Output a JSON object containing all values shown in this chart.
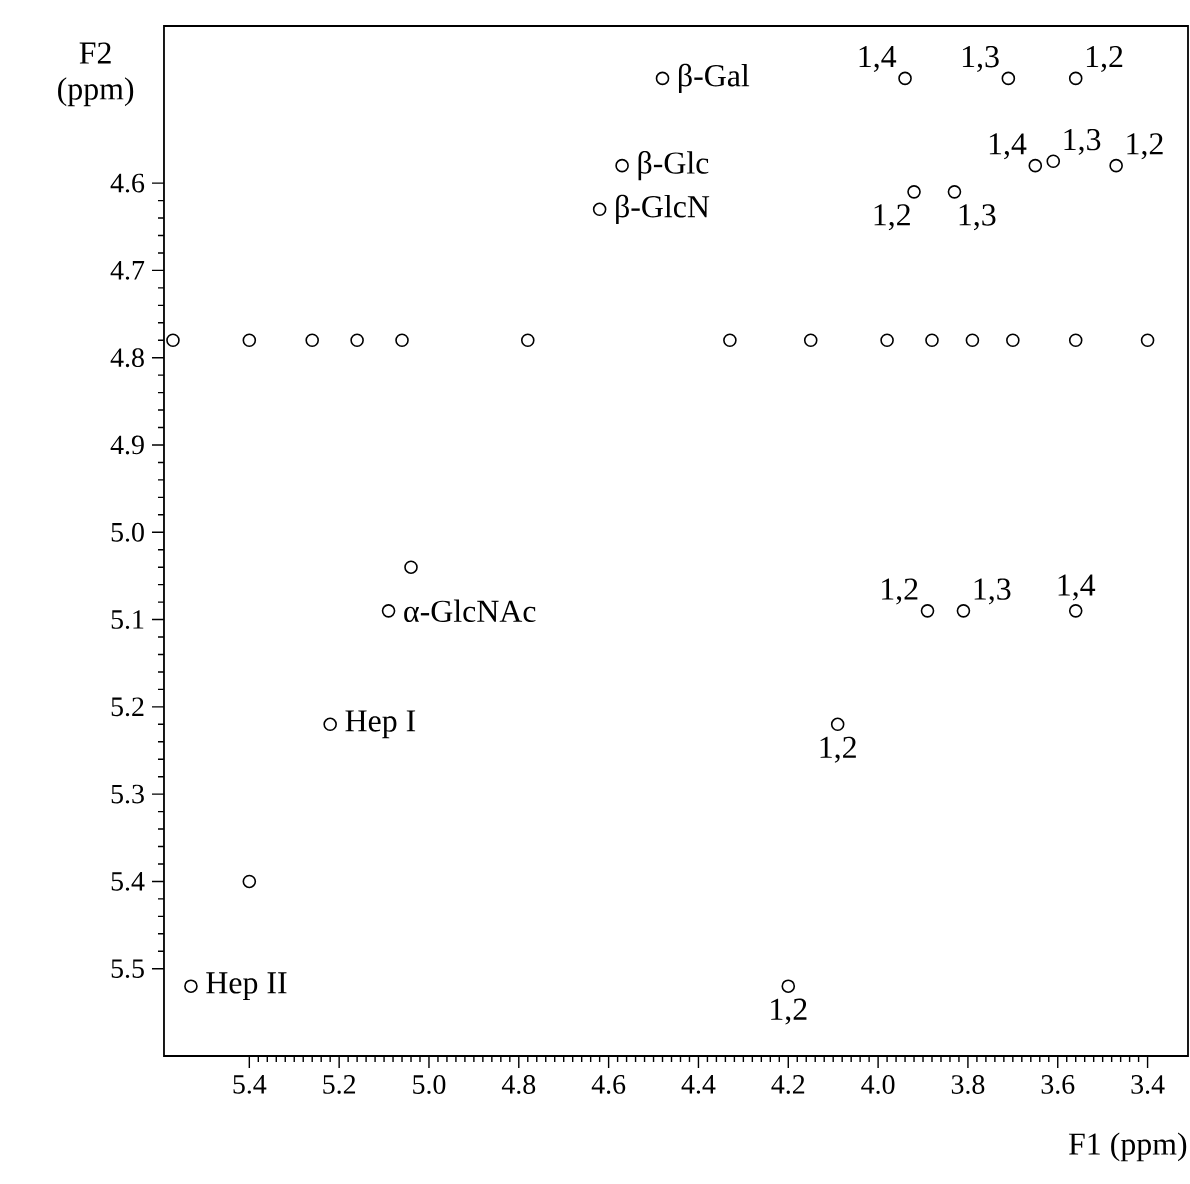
{
  "chart_data": {
    "type": "scatter",
    "xlabel": "F1 (ppm)",
    "ylabel": "F2 (ppm)",
    "marker": "circle",
    "xlim": [
      5.59,
      3.31
    ],
    "ylim": [
      5.6,
      4.42
    ],
    "xticks": [
      5.4,
      5.2,
      {
        "value": 5.0,
        "label": "5.0"
      },
      4.8,
      4.6,
      4.4,
      4.2,
      {
        "value": 4.0,
        "label": "4.0"
      },
      3.8,
      3.6,
      3.4
    ],
    "yticks": [
      4.6,
      4.7,
      4.8,
      4.9,
      {
        "value": 5.0,
        "label": "5.0"
      },
      5.1,
      5.2,
      5.3,
      5.4,
      5.5
    ],
    "series": [
      {
        "color": "#000000",
        "x": [
          4.48,
          4.57,
          4.62,
          4.78,
          5.04,
          5.09,
          5.22,
          5.4,
          5.53
        ],
        "values": [
          4.48,
          4.58,
          4.63,
          4.78,
          5.04,
          5.09,
          5.22,
          5.4,
          5.52
        ]
      },
      {
        "color": "#000000",
        "x": [
          3.94,
          3.71,
          3.56,
          3.65,
          3.61,
          3.47,
          3.92,
          3.83,
          3.89,
          3.81,
          3.56,
          4.09,
          4.2
        ],
        "values": [
          4.48,
          4.48,
          4.48,
          4.58,
          4.575,
          4.58,
          4.61,
          4.61,
          5.09,
          5.09,
          5.09,
          5.22,
          5.52
        ]
      },
      {
        "color": "#000000",
        "x": [
          5.57,
          5.4,
          5.26,
          5.16,
          5.06,
          4.33,
          4.15,
          3.98,
          3.88,
          3.79,
          3.7,
          3.56,
          3.4
        ],
        "values": [
          4.78,
          4.78,
          4.78,
          4.78,
          4.78,
          4.78,
          4.78,
          4.78,
          4.78,
          4.78,
          4.78,
          4.78,
          4.78
        ]
      }
    ],
    "annotations": [
      {
        "text": "β-Gal",
        "x": 4.48,
        "y": 4.48
      },
      {
        "text": "β-Glc",
        "x": 4.57,
        "y": 4.58
      },
      {
        "text": "β-GlcN",
        "x": 4.62,
        "y": 4.63
      },
      {
        "text": "α-GlcNAc",
        "x": 5.09,
        "y": 5.09
      },
      {
        "text": "Hep I",
        "x": 5.22,
        "y": 5.22
      },
      {
        "text": "Hep II",
        "x": 5.53,
        "y": 5.52
      },
      {
        "text": "1,4",
        "x": 3.94,
        "y": 4.48
      },
      {
        "text": "1,3",
        "x": 3.71,
        "y": 4.48
      },
      {
        "text": "1,2",
        "x": 3.56,
        "y": 4.48
      },
      {
        "text": "1,4",
        "x": 3.65,
        "y": 4.58
      },
      {
        "text": "1,3",
        "x": 3.61,
        "y": 4.575
      },
      {
        "text": "1,2",
        "x": 3.47,
        "y": 4.58
      },
      {
        "text": "1,2",
        "x": 3.92,
        "y": 4.61
      },
      {
        "text": "1,3",
        "x": 3.83,
        "y": 4.61
      },
      {
        "text": "1,2",
        "x": 3.89,
        "y": 5.09
      },
      {
        "text": "1,3",
        "x": 3.81,
        "y": 5.09
      },
      {
        "text": "1,4",
        "x": 3.56,
        "y": 5.09
      },
      {
        "text": "1,2",
        "x": 4.09,
        "y": 5.22
      },
      {
        "text": "1,2",
        "x": 4.2,
        "y": 5.52
      }
    ]
  }
}
